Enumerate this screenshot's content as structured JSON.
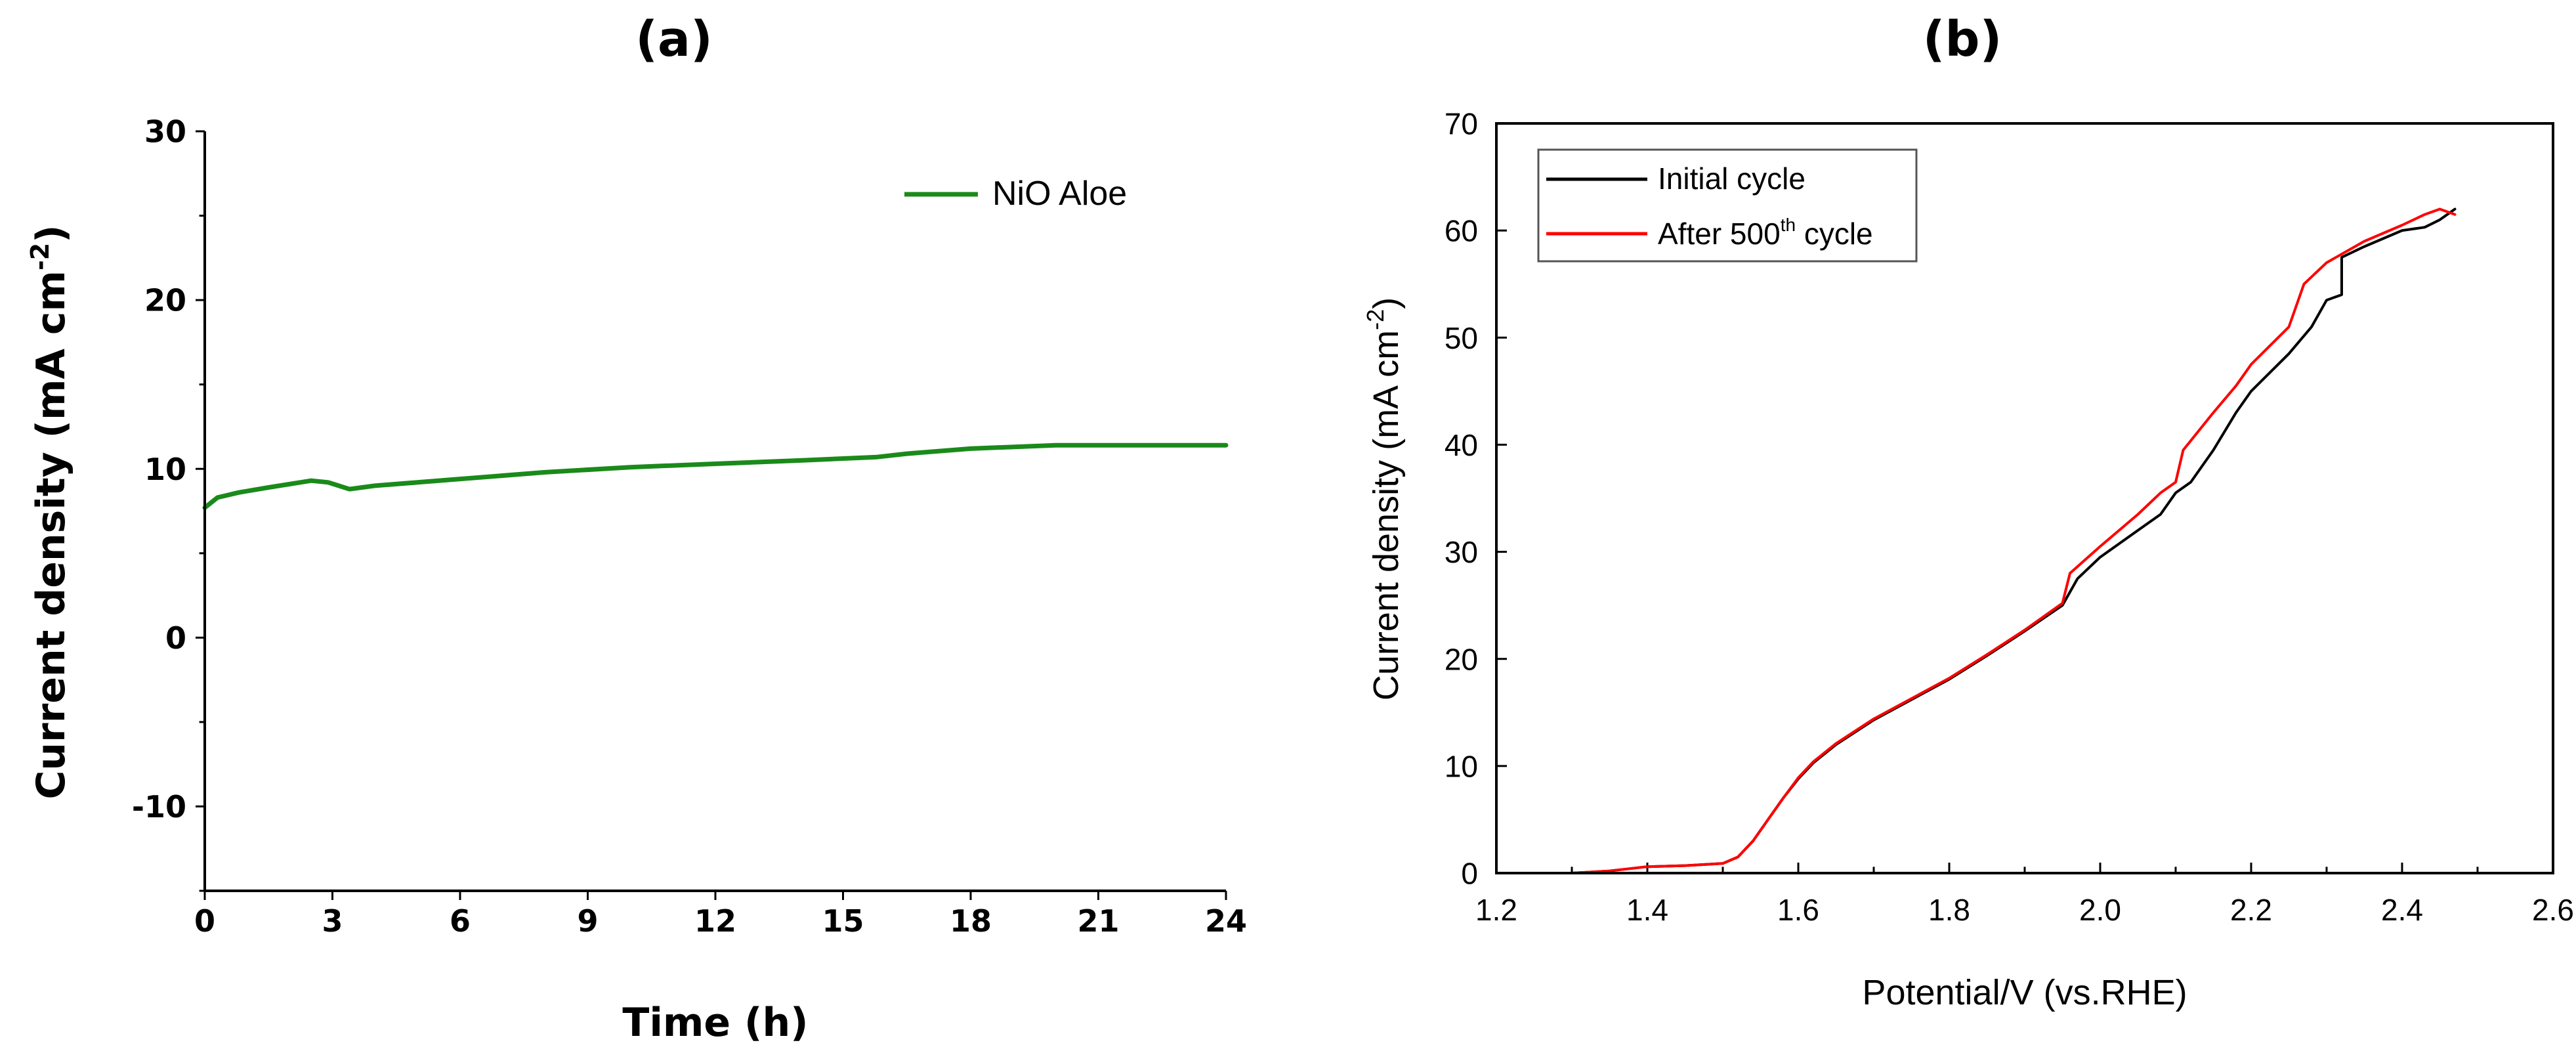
{
  "chart_data": [
    {
      "panel_label": "(a)",
      "type": "line",
      "xlabel": "Time (h)",
      "ylabel_main": "Current density (mA cm",
      "ylabel_sup": "-2",
      "ylabel_end": ")",
      "xlim": [
        0,
        24
      ],
      "ylim": [
        -15,
        30
      ],
      "xticks": [
        "0",
        "3",
        "6",
        "9",
        "12",
        "15",
        "18",
        "21",
        "24"
      ],
      "yticks": [
        "-10",
        "0",
        "10",
        "20",
        "30"
      ],
      "legend_position": "top-right",
      "series": [
        {
          "name": "NiO Aloe",
          "color": "#1a8a1a",
          "x": [
            0,
            0.3,
            0.8,
            1.5,
            2.5,
            2.9,
            3.4,
            4,
            5,
            6,
            8,
            10,
            12,
            14,
            15.8,
            16.5,
            18,
            20,
            22,
            24
          ],
          "y": [
            7.7,
            8.3,
            8.6,
            8.9,
            9.3,
            9.2,
            8.8,
            9.0,
            9.2,
            9.4,
            9.8,
            10.1,
            10.3,
            10.5,
            10.7,
            10.9,
            11.2,
            11.4,
            11.4,
            11.4
          ]
        }
      ]
    },
    {
      "panel_label": "(b)",
      "type": "line",
      "xlabel": "Potential/V (vs.RHE)",
      "ylabel_main": "Current density (mA cm",
      "ylabel_sup": "-2",
      "ylabel_end": ")",
      "xlim": [
        1.2,
        2.6
      ],
      "ylim": [
        0,
        70
      ],
      "xticks": [
        "1.2",
        "1.4",
        "1.6",
        "1.8",
        "2.0",
        "2.2",
        "2.4",
        "2.6"
      ],
      "yticks": [
        "0",
        "10",
        "20",
        "30",
        "40",
        "50",
        "60",
        "70"
      ],
      "legend_position": "top-left",
      "series": [
        {
          "name": "Initial cycle",
          "name_main": "Initial cycle",
          "name_sup": "",
          "name_end": "",
          "color": "#000000",
          "x": [
            1.2,
            1.3,
            1.35,
            1.4,
            1.45,
            1.5,
            1.52,
            1.54,
            1.56,
            1.58,
            1.6,
            1.62,
            1.65,
            1.7,
            1.75,
            1.8,
            1.85,
            1.9,
            1.95,
            1.97,
            2.0,
            2.05,
            2.08,
            2.1,
            2.12,
            2.15,
            2.18,
            2.2,
            2.25,
            2.28,
            2.3,
            2.32,
            2.32,
            2.35,
            2.4,
            2.43,
            2.45,
            2.47
          ],
          "y": [
            0,
            0,
            0.2,
            0.6,
            0.7,
            0.9,
            1.5,
            3.0,
            5.0,
            7.0,
            8.8,
            10.3,
            12.0,
            14.3,
            16.2,
            18.1,
            20.3,
            22.6,
            25.0,
            27.5,
            29.5,
            32.0,
            33.5,
            35.5,
            36.5,
            39.5,
            43.0,
            45.0,
            48.5,
            51.0,
            53.5,
            54.0,
            57.5,
            58.5,
            60.0,
            60.3,
            61.0,
            62.0
          ]
        },
        {
          "name": "After 500th cycle",
          "name_main": "After 500",
          "name_sup": "th",
          "name_end": " cycle",
          "color": "#ff0000",
          "x": [
            1.2,
            1.3,
            1.35,
            1.4,
            1.45,
            1.5,
            1.52,
            1.54,
            1.56,
            1.58,
            1.6,
            1.62,
            1.65,
            1.7,
            1.75,
            1.8,
            1.85,
            1.9,
            1.95,
            1.96,
            2.0,
            2.05,
            2.08,
            2.1,
            2.11,
            2.15,
            2.18,
            2.2,
            2.25,
            2.27,
            2.3,
            2.35,
            2.4,
            2.43,
            2.45,
            2.47
          ],
          "y": [
            0,
            0,
            0.2,
            0.6,
            0.7,
            0.9,
            1.5,
            3.0,
            5.0,
            7.0,
            8.9,
            10.4,
            12.1,
            14.4,
            16.3,
            18.2,
            20.4,
            22.7,
            25.2,
            28.0,
            30.5,
            33.5,
            35.5,
            36.5,
            39.5,
            43.0,
            45.5,
            47.5,
            51.0,
            55.0,
            57.0,
            59.0,
            60.5,
            61.5,
            62.0,
            61.5
          ]
        }
      ]
    }
  ]
}
